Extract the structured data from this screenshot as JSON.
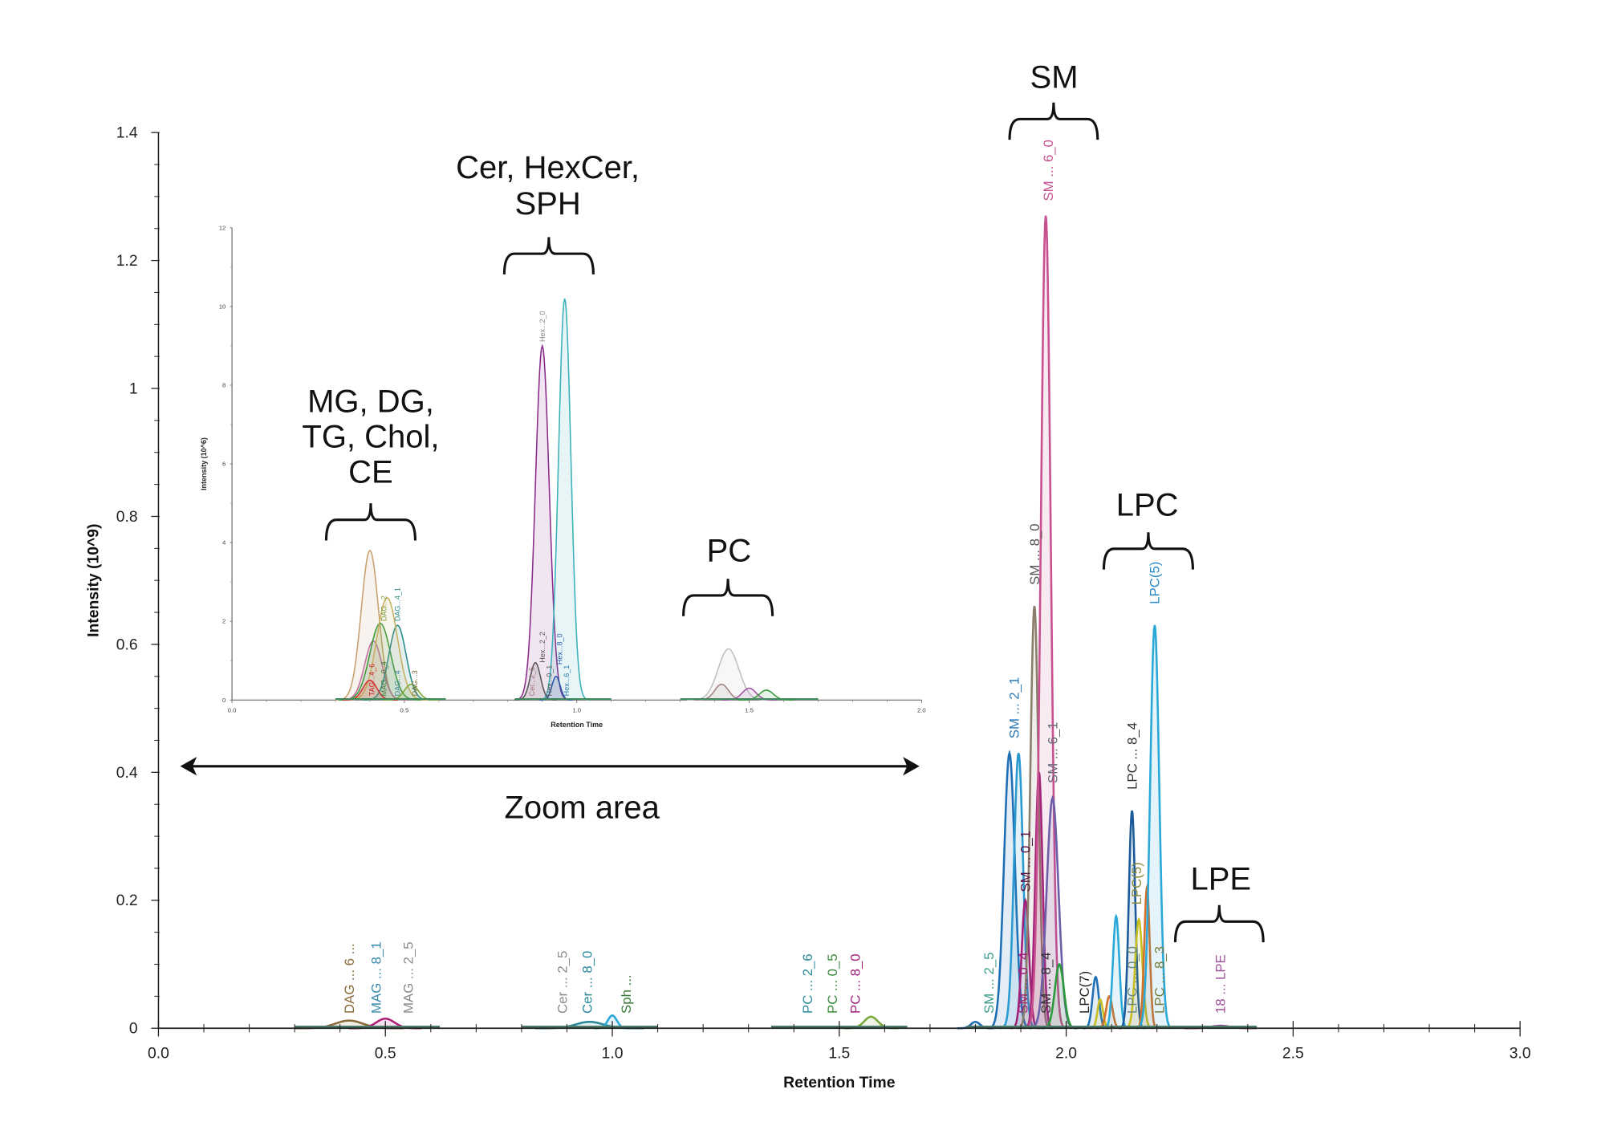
{
  "chart_data": {
    "type": "line",
    "title": "",
    "xlabel": "Retention Time",
    "ylabel": "Intensity (10^9)",
    "xlim": [
      0,
      3.0
    ],
    "ylim": [
      0,
      1.4
    ],
    "x_ticks": [
      "0.0",
      "0.5",
      "1.0",
      "1.5",
      "2.0",
      "2.5",
      "3.0"
    ],
    "y_ticks": [
      "0",
      "0.2",
      "0.4",
      "0.6",
      "0.8",
      "1",
      "1.2",
      "1.4"
    ],
    "grid": false,
    "peaks": [
      {
        "rt": 0.42,
        "height": 0.012,
        "width": 0.03,
        "color": "#8a6a3a"
      },
      {
        "rt": 0.5,
        "height": 0.015,
        "width": 0.02,
        "color": "#b0207a"
      },
      {
        "rt": 0.95,
        "height": 0.01,
        "width": 0.03,
        "color": "#2a8a9a"
      },
      {
        "rt": 1.0,
        "height": 0.02,
        "width": 0.01,
        "color": "#2aa8d8"
      },
      {
        "rt": 1.57,
        "height": 0.018,
        "width": 0.015,
        "color": "#7aa83a"
      },
      {
        "rt": 1.8,
        "height": 0.01,
        "width": 0.01,
        "color": "#1f6fb5"
      },
      {
        "rt": 1.875,
        "height": 0.43,
        "width": 0.012,
        "color": "#1f6fb5"
      },
      {
        "rt": 1.895,
        "height": 0.43,
        "width": 0.01,
        "color": "#2a9ad0"
      },
      {
        "rt": 1.91,
        "height": 0.2,
        "width": 0.008,
        "color": "#a0207a"
      },
      {
        "rt": 1.93,
        "height": 0.66,
        "width": 0.009,
        "color": "#8a7d6a"
      },
      {
        "rt": 1.94,
        "height": 0.4,
        "width": 0.008,
        "color": "#a0207a"
      },
      {
        "rt": 1.955,
        "height": 1.27,
        "width": 0.011,
        "color": "#c8508f"
      },
      {
        "rt": 1.97,
        "height": 0.36,
        "width": 0.013,
        "color": "#6a5fa8"
      },
      {
        "rt": 1.985,
        "height": 0.1,
        "width": 0.01,
        "color": "#2a9a3a"
      },
      {
        "rt": 2.065,
        "height": 0.08,
        "width": 0.007,
        "color": "#1f6fb5"
      },
      {
        "rt": 2.075,
        "height": 0.045,
        "width": 0.006,
        "color": "#c8c020"
      },
      {
        "rt": 2.095,
        "height": 0.05,
        "width": 0.007,
        "color": "#d0702a"
      },
      {
        "rt": 2.11,
        "height": 0.175,
        "width": 0.007,
        "color": "#2aa8d8"
      },
      {
        "rt": 2.145,
        "height": 0.34,
        "width": 0.007,
        "color": "#1a5a9a"
      },
      {
        "rt": 2.16,
        "height": 0.17,
        "width": 0.008,
        "color": "#c8c020"
      },
      {
        "rt": 2.178,
        "height": 0.22,
        "width": 0.006,
        "color": "#d0702a"
      },
      {
        "rt": 2.195,
        "height": 0.63,
        "width": 0.01,
        "color": "#2aa8d8"
      },
      {
        "rt": 2.34,
        "height": 0.004,
        "width": 0.02,
        "color": "#a0509a"
      }
    ],
    "peak_labels": [
      {
        "text": "SM ... 6_0",
        "rt": 1.96,
        "at": 1.28,
        "color": "#c8508f"
      },
      {
        "text": "SM ... 8_0",
        "rt": 1.93,
        "at": 0.68,
        "color": "#555555"
      },
      {
        "text": "SM ... 2_1",
        "rt": 1.885,
        "at": 0.44,
        "color": "#2a7ab8"
      },
      {
        "text": "SM ... 0_1",
        "rt": 1.91,
        "at": 0.2,
        "color": "#5a1040"
      },
      {
        "text": "SM ... 6_1",
        "rt": 1.97,
        "at": 0.37,
        "color": "#6a6a7a"
      },
      {
        "text": "SM ... 2_5",
        "rt": 1.83,
        "at": 0.01,
        "color": "#3a9a8a"
      },
      {
        "text": "SM ... 0_4",
        "rt": 1.905,
        "at": 0.01,
        "color": "#a0207a"
      },
      {
        "text": "SM ... 8_4",
        "rt": 1.955,
        "at": 0.01,
        "color": "#333333"
      },
      {
        "text": "LPC(7)",
        "rt": 2.04,
        "at": 0.01,
        "color": "#222222"
      },
      {
        "text": "LPC ... 0_0",
        "rt": 2.145,
        "at": 0.01,
        "color": "#6a8a7a"
      },
      {
        "text": "LPC ... 8_3",
        "rt": 2.205,
        "at": 0.01,
        "color": "#7a7a3a"
      },
      {
        "text": "18 ... LPE",
        "rt": 2.34,
        "at": 0.01,
        "color": "#a0509a"
      },
      {
        "text": "LPC ... 8_4",
        "rt": 2.145,
        "at": 0.36,
        "color": "#333333"
      },
      {
        "text": "LPC(5)",
        "rt": 2.155,
        "at": 0.18,
        "color": "#8a8a3a"
      },
      {
        "text": "LPC(5)",
        "rt": 2.195,
        "at": 0.65,
        "color": "#2a8ac8"
      },
      {
        "text": "DAG ... 6 ...",
        "rt": 0.42,
        "at": 0.01,
        "color": "#8a6a3a"
      },
      {
        "text": "MAG ... 8_1",
        "rt": 0.48,
        "at": 0.01,
        "color": "#3a8ab0"
      },
      {
        "text": "MAG ... 2_5",
        "rt": 0.55,
        "at": 0.01,
        "color": "#8a8a8a"
      },
      {
        "text": "Cer ... 2_5",
        "rt": 0.89,
        "at": 0.01,
        "color": "#8a8a8a"
      },
      {
        "text": "Cer ... 8_0",
        "rt": 0.945,
        "at": 0.01,
        "color": "#2a8a9a"
      },
      {
        "text": "Sph ...",
        "rt": 1.03,
        "at": 0.01,
        "color": "#3a7a3a"
      },
      {
        "text": "PC ... 2_6",
        "rt": 1.43,
        "at": 0.01,
        "color": "#2a8a9a"
      },
      {
        "text": "PC ... 0_5",
        "rt": 1.485,
        "at": 0.01,
        "color": "#3a8a3a"
      },
      {
        "text": "PC ... 8_0",
        "rt": 1.535,
        "at": 0.01,
        "color": "#a0207a"
      }
    ],
    "annotations": [
      {
        "lines": [
          "SM"
        ]
      },
      {
        "lines": [
          "Cer, HexCer,",
          "SPH"
        ]
      },
      {
        "lines": [
          "MG, DG,",
          "TG, Chol,",
          "CE"
        ]
      },
      {
        "lines": [
          "PC"
        ]
      },
      {
        "lines": [
          "LPC"
        ]
      },
      {
        "lines": [
          "LPE"
        ]
      },
      {
        "lines": [
          "Zoom area"
        ]
      }
    ],
    "inset": {
      "xlabel": "Retention Time",
      "ylabel": "Intensity (10^6)",
      "xlim": [
        0,
        2.0
      ],
      "ylim": [
        0,
        12
      ],
      "x_ticks": [
        "0.0",
        "0.5",
        "1.0",
        "1.5",
        "2.0"
      ],
      "y_ticks": [
        "0",
        "2",
        "4",
        "6",
        "8",
        "10",
        "12"
      ],
      "peaks": [
        {
          "rt": 0.4,
          "height": 3.8,
          "width": 0.025,
          "color": "#c8a070"
        },
        {
          "rt": 0.41,
          "height": 1.5,
          "width": 0.025,
          "color": "#c070a0"
        },
        {
          "rt": 0.43,
          "height": 1.95,
          "width": 0.03,
          "color": "#3a9a3a"
        },
        {
          "rt": 0.48,
          "height": 1.9,
          "width": 0.025,
          "color": "#2a8a8a"
        },
        {
          "rt": 0.45,
          "height": 2.6,
          "width": 0.03,
          "color": "#c8b060"
        },
        {
          "rt": 0.4,
          "height": 0.5,
          "width": 0.02,
          "color": "#d03030"
        },
        {
          "rt": 0.52,
          "height": 0.4,
          "width": 0.02,
          "color": "#7aa83a"
        },
        {
          "rt": 0.9,
          "height": 9.0,
          "width": 0.02,
          "color": "#8a2a8a"
        },
        {
          "rt": 0.965,
          "height": 10.2,
          "width": 0.018,
          "color": "#3ab0b8"
        },
        {
          "rt": 0.88,
          "height": 0.95,
          "width": 0.015,
          "color": "#555555"
        },
        {
          "rt": 0.94,
          "height": 0.6,
          "width": 0.012,
          "color": "#2a5aa8"
        },
        {
          "rt": 1.44,
          "height": 1.3,
          "width": 0.03,
          "color": "#c0c0c0"
        },
        {
          "rt": 1.42,
          "height": 0.4,
          "width": 0.02,
          "color": "#a08080"
        },
        {
          "rt": 1.5,
          "height": 0.3,
          "width": 0.02,
          "color": "#a050a0"
        },
        {
          "rt": 1.55,
          "height": 0.25,
          "width": 0.02,
          "color": "#3a9a3a"
        }
      ],
      "peak_labels": [
        {
          "text": "TAG...4_6",
          "rt": 0.405,
          "at": 0.1,
          "color": "#d02020"
        },
        {
          "text": "MAG...0_4",
          "rt": 0.44,
          "at": 0.1,
          "color": "#3a7a3a"
        },
        {
          "text": "DAG...4",
          "rt": 0.48,
          "at": 0.1,
          "color": "#3a8a9a"
        },
        {
          "text": "DAG...3",
          "rt": 0.53,
          "at": 0.1,
          "color": "#7a6a3a"
        },
        {
          "text": "DAG...2",
          "rt": 0.44,
          "at": 2.0,
          "color": "#7a9a3a"
        },
        {
          "text": "DAG...4_1",
          "rt": 0.48,
          "at": 2.0,
          "color": "#2a8a8a"
        },
        {
          "text": "Cer...2_5",
          "rt": 0.87,
          "at": 0.1,
          "color": "#a07070"
        },
        {
          "text": "Hex...2_2",
          "rt": 0.9,
          "at": 0.95,
          "color": "#555555"
        },
        {
          "text": "Hex...0_1",
          "rt": 0.92,
          "at": 0.1,
          "color": "#555555"
        },
        {
          "text": "Hex...8_0",
          "rt": 0.95,
          "at": 0.9,
          "color": "#2a5aa8"
        },
        {
          "text": "Hex...6_1",
          "rt": 0.97,
          "at": 0.1,
          "color": "#2a7aa8"
        },
        {
          "text": "Hex...2_0",
          "rt": 0.9,
          "at": 9.1,
          "color": "#888888"
        }
      ]
    }
  }
}
